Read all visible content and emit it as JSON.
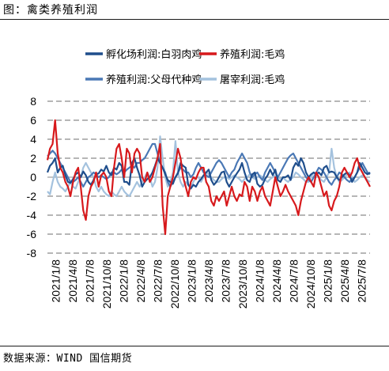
{
  "title": "图：禽类养殖利润",
  "source": "数据来源：WIND 国信期货",
  "chart_data": {
    "type": "line",
    "title": "",
    "xlabel": "",
    "ylabel": "",
    "ylim": [
      -8,
      8
    ],
    "y_ticks": [
      8,
      6,
      4,
      2,
      0,
      -2,
      -4,
      -6,
      -8
    ],
    "x_ticks": [
      "2021/1/8",
      "2021/4/8",
      "2021/7/8",
      "2021/10/8",
      "2022/1/8",
      "2022/4/8",
      "2022/7/8",
      "2022/10/8",
      "2023/1/8",
      "2023/4/8",
      "2023/7/8",
      "2023/10/8",
      "2024/1/8",
      "2024/4/8",
      "2024/7/8",
      "2024/10/8",
      "2025/1/8",
      "2025/4/8",
      "2025/7/8"
    ],
    "grid": "horizontal dashed",
    "legend_position": "top",
    "x_start_month": "2021-01",
    "series": [
      {
        "name": "孵化场利润:白羽肉鸡",
        "color": "#1f4e8c",
        "values": [
          0.5,
          1.2,
          1.5,
          2.0,
          0.5,
          1.0,
          1.2,
          0.2,
          -0.5,
          -0.6,
          -0.2,
          0.3,
          0.5,
          0.0,
          0.6,
          0.2,
          -0.5,
          -0.8,
          -0.3,
          0.3,
          0.4,
          0.8,
          0.6,
          1.2,
          0.5,
          0.2,
          1.0,
          0.8,
          1.5,
          1.2,
          -0.5,
          -0.5,
          -0.8,
          1.5,
          2.0,
          1.0,
          0.2,
          -1.0,
          -0.5,
          -0.2,
          0.0,
          0.5,
          1.2,
          2.0,
          1.5,
          1.0,
          0.3,
          -0.3,
          -0.5,
          -0.7,
          0.0,
          0.4,
          1.5,
          1.2,
          1.0,
          -0.8,
          -1.2,
          -0.8,
          -1.0,
          -0.5,
          -0.2,
          0.2,
          0.5,
          0.8,
          -0.3,
          -0.8,
          -0.5,
          0.0,
          0.5,
          0.6,
          -0.5,
          -1.0,
          -0.5,
          0.0,
          0.4,
          0.8,
          1.5,
          0.5,
          -0.3,
          -0.5,
          0.3,
          0.5,
          -0.7,
          -1.0,
          -0.8,
          -0.2,
          0.2,
          0.8,
          0.2,
          0.8,
          -0.3,
          -0.5,
          0.0,
          0.0,
          0.2,
          -0.3,
          1.0,
          1.5,
          1.2,
          2.0,
          1.5,
          0.5,
          0.0,
          0.3,
          0.5,
          0.3,
          0.5,
          0.2,
          1.0,
          1.2,
          0.5,
          0.6,
          0.5,
          0.0,
          -0.3,
          0.0,
          0.3,
          0.5,
          0.2,
          -0.5,
          0.0,
          0.5,
          1.5,
          1.0,
          0.5,
          0.3,
          0.5
        ]
      },
      {
        "name": "养殖利润:毛鸡",
        "color": "#d7191c",
        "values": [
          1.8,
          3.0,
          3.5,
          6.0,
          2.5,
          1.0,
          0.5,
          -0.5,
          -1.0,
          -2.0,
          -0.5,
          0.5,
          1.0,
          -1.0,
          -3.5,
          -4.5,
          -2.0,
          -1.0,
          -0.5,
          0.5,
          -1.0,
          0.2,
          0.5,
          0.0,
          -1.5,
          -2.0,
          1.0,
          3.0,
          3.5,
          2.0,
          0.0,
          3.0,
          2.5,
          0.5,
          2.5,
          3.0,
          2.5,
          0.0,
          -0.5,
          0.5,
          -0.5,
          0.0,
          1.0,
          2.0,
          3.5,
          -3.0,
          -6.0,
          -2.0,
          -1.0,
          0.0,
          1.5,
          3.0,
          2.0,
          0.0,
          -1.0,
          -2.0,
          -0.5,
          0.0,
          -0.2,
          0.5,
          1.0,
          1.0,
          -0.5,
          -1.0,
          -2.5,
          -3.0,
          -2.0,
          -2.5,
          -2.0,
          -1.5,
          -3.0,
          -2.0,
          -1.0,
          -2.0,
          -2.5,
          -1.8,
          -2.0,
          -0.5,
          -1.0,
          -2.5,
          -1.0,
          -1.5,
          -2.5,
          -1.5,
          -1.0,
          -2.0,
          -2.5,
          -3.0,
          -1.5,
          0.0,
          -1.0,
          -2.0,
          -1.5,
          -0.8,
          -1.5,
          -2.0,
          -2.5,
          -3.0,
          -4.0,
          -2.5,
          -1.5,
          -0.5,
          0.0,
          -0.5,
          -1.0,
          0.5,
          0.0,
          -1.0,
          -2.0,
          -1.5,
          -3.0,
          -3.5,
          -2.5,
          -2.0,
          -1.0,
          0.5,
          1.0,
          0.5,
          0.0,
          0.5,
          1.5,
          2.0,
          1.0,
          0.5,
          0.0,
          -0.5,
          -1.0
        ]
      },
      {
        "name": "养殖利润:父母代种鸡",
        "color": "#4a78b5",
        "values": [
          2.2,
          2.5,
          2.8,
          2.5,
          2.0,
          1.5,
          1.0,
          0.5,
          0.0,
          -0.5,
          -0.5,
          -0.3,
          0.0,
          -0.5,
          -1.0,
          -0.5,
          0.0,
          0.2,
          0.5,
          0.3,
          0.0,
          0.2,
          0.0,
          -0.2,
          0.0,
          0.5,
          0.5,
          0.3,
          0.5,
          0.8,
          0.5,
          0.8,
          1.0,
          1.2,
          1.0,
          1.5,
          1.5,
          1.8,
          2.0,
          2.5,
          3.0,
          3.5,
          3.5,
          2.5,
          1.5,
          1.0,
          0.5,
          -0.5,
          -1.0,
          -0.5,
          0.0,
          0.5,
          1.0,
          0.8,
          0.5,
          0.5,
          0.0,
          0.3,
          1.0,
          1.5,
          1.0,
          0.5,
          0.2,
          0.0,
          0.5,
          1.0,
          1.5,
          1.8,
          1.5,
          1.0,
          0.5,
          0.0,
          0.5,
          0.8,
          1.5,
          2.0,
          2.5,
          2.0,
          1.5,
          0.5,
          0.0,
          0.3,
          0.5,
          0.0,
          -0.3,
          0.5,
          1.0,
          1.5,
          1.0,
          0.5,
          0.0,
          0.5,
          1.0,
          1.5,
          2.0,
          2.3,
          2.5,
          2.0,
          1.5,
          1.0,
          0.5,
          0.0,
          -0.3,
          -0.5,
          0.0,
          0.5,
          1.0,
          0.8,
          0.5,
          0.0,
          -0.5,
          -0.8,
          -0.3,
          0.0,
          0.5,
          0.3,
          0.0,
          -0.3,
          -0.5,
          -0.2,
          0.0,
          0.5,
          1.0,
          1.5,
          1.0,
          0.5,
          0.3
        ]
      },
      {
        "name": "屠宰利润:毛鸡",
        "color": "#a4c2de",
        "values": [
          -1.5,
          -1.8,
          -0.5,
          0.5,
          -0.5,
          -1.0,
          -1.2,
          -1.5,
          -1.0,
          -0.5,
          -1.0,
          -1.2,
          -0.5,
          0.0,
          1.0,
          1.5,
          1.0,
          0.5,
          0.0,
          -1.0,
          -1.5,
          -1.0,
          -1.5,
          -1.8,
          -2.0,
          -1.5,
          -1.8,
          -2.0,
          -1.5,
          -1.0,
          -1.5,
          -1.8,
          -2.0,
          -1.5,
          -1.0,
          -0.5,
          -1.0,
          -0.5,
          0.0,
          0.5,
          0.0,
          -1.0,
          -0.5,
          1.0,
          4.3,
          2.0,
          0.0,
          -1.0,
          -0.5,
          0.5,
          3.8,
          0.5,
          -0.5,
          -1.0,
          -0.5,
          -0.8,
          -1.0,
          -0.5,
          0.0,
          0.0,
          -0.5,
          0.0,
          0.5,
          0.3,
          0.0,
          -0.3,
          -0.5,
          -0.5,
          -0.2,
          0.0,
          0.0,
          -0.2,
          0.0,
          0.2,
          0.0,
          -0.2,
          -0.5,
          -0.2,
          0.0,
          0.3,
          0.0,
          -0.2,
          0.0,
          0.2,
          0.0,
          -0.3,
          -0.5,
          -0.2,
          0.0,
          0.2,
          0.0,
          -0.2,
          0.0,
          -0.3,
          -0.5,
          -0.2,
          0.0,
          0.5,
          0.3,
          0.0,
          -0.2,
          -0.5,
          -0.5,
          0.0,
          0.5,
          0.3,
          0.0,
          -0.3,
          -0.5,
          0.0,
          0.5,
          3.0,
          1.0,
          0.0,
          -0.5,
          -0.3,
          0.0,
          0.3,
          0.5,
          0.0,
          -0.5,
          -0.3,
          0.0,
          0.2,
          0.0,
          -0.3,
          -0.5
        ]
      }
    ]
  }
}
